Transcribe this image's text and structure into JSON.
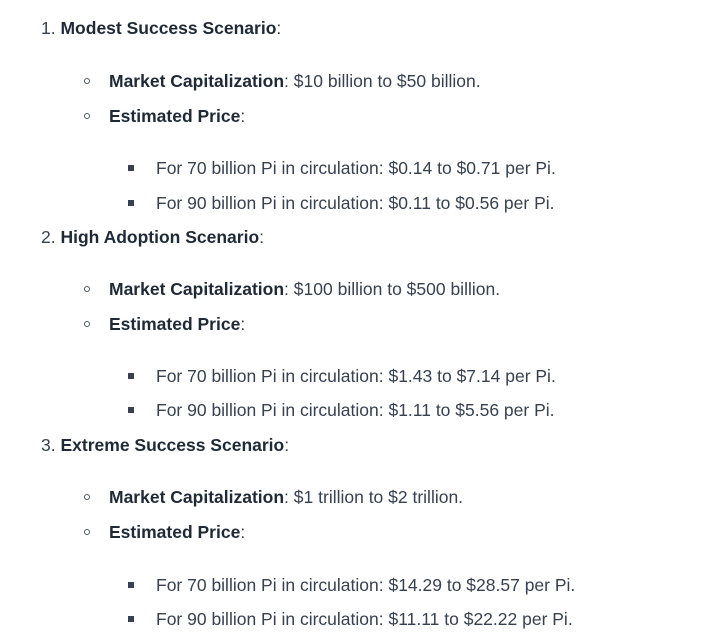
{
  "scenarios": [
    {
      "number": "1.",
      "title": "Modest Success Scenario",
      "market_cap_label": "Market Capitalization",
      "market_cap_value": "$10 billion to $50 billion.",
      "price_label": "Estimated Price",
      "prices": [
        "For 70 billion Pi in circulation: $0.14 to $0.71 per Pi.",
        "For 90 billion Pi in circulation: $0.11 to $0.56 per Pi."
      ]
    },
    {
      "number": "2.",
      "title": "High Adoption Scenario",
      "market_cap_label": "Market Capitalization",
      "market_cap_value": "$100 billion to $500 billion.",
      "price_label": "Estimated Price",
      "prices": [
        "For 70 billion Pi in circulation: $1.43 to $7.14 per Pi.",
        "For 90 billion Pi in circulation: $1.11 to $5.56 per Pi."
      ]
    },
    {
      "number": "3.",
      "title": "Extreme Success Scenario",
      "market_cap_label": "Market Capitalization",
      "market_cap_value": "$1 trillion to $2 trillion.",
      "price_label": "Estimated Price",
      "prices": [
        "For 70 billion Pi in circulation: $14.29 to $28.57 per Pi.",
        "For 90 billion Pi in circulation: $11.11 to $22.22 per Pi."
      ]
    }
  ],
  "separator": ":"
}
